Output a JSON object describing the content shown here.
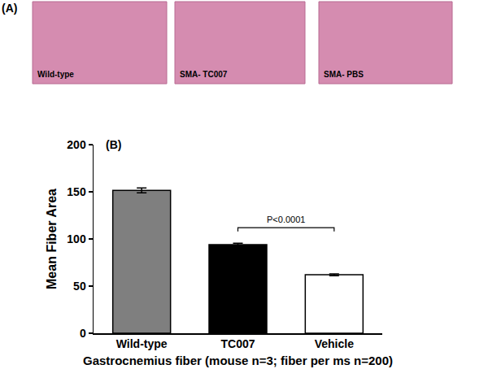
{
  "chart_data": {
    "type": "bar",
    "categories": [
      "Wild-type",
      "TC007",
      "Vehicle"
    ],
    "values": [
      151.5,
      94,
      62
    ],
    "errors": [
      2.5,
      1.5,
      1
    ],
    "colors": [
      "#7f7f7f",
      "#000000",
      "#ffffff"
    ],
    "x_label": "Gastrocnemius fiber (mouse n=3; fiber per ms n=200)",
    "y_label": "Mean Fiber Area",
    "ylim": [
      0,
      200
    ],
    "yticks": [
      0,
      50,
      100,
      150,
      200
    ],
    "grid": false,
    "annotations": [
      {
        "text": "P<0.0001",
        "between": [
          "TC007",
          "Vehicle"
        ],
        "y": 112
      }
    ]
  },
  "figure": {
    "panel_labels": [
      "(A)",
      "(B)"
    ],
    "images": [
      "Wild-type",
      "SMA- TC007",
      "SMA- PBS"
    ]
  }
}
